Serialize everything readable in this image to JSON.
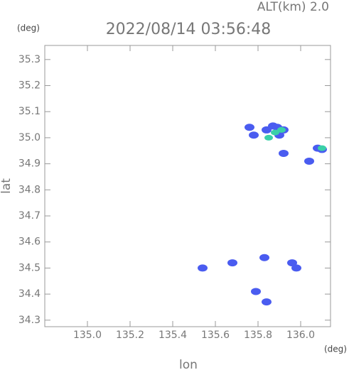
{
  "chart_data": {
    "type": "scatter",
    "title": "2022/08/14 03:56:48",
    "subtitle": "ALT(km) 2.0",
    "y_unit": "(deg)",
    "x_unit": "(deg)",
    "x_label": "lon",
    "y_label": "lat",
    "xlim": [
      134.8,
      136.14
    ],
    "ylim": [
      34.275,
      35.354
    ],
    "xticks": [
      {
        "value": 135,
        "label": "135.0"
      },
      135.2,
      135.4,
      135.6,
      135.8,
      {
        "value": 136,
        "label": "136.0"
      }
    ],
    "yticks": [
      34.3,
      34.4,
      34.5,
      34.6,
      34.7,
      34.8,
      34.9,
      {
        "value": 35,
        "label": "35.0"
      },
      35.1,
      35.2,
      35.3
    ],
    "series": [
      {
        "color": "#4a5cf0",
        "x": [
          135.84,
          135.87,
          135.89,
          135.92,
          135.9,
          135.76,
          135.78,
          135.92,
          136.08,
          136.1,
          136.04,
          135.96,
          135.98,
          135.68,
          135.54,
          135.83,
          135.79,
          135.84
        ],
        "y": [
          35.03,
          35.045,
          35.04,
          35.03,
          35.01,
          35.04,
          35.01,
          34.94,
          34.96,
          34.955,
          34.91,
          34.52,
          34.5,
          34.52,
          34.5,
          34.54,
          34.41,
          34.37
        ]
      },
      {
        "color": "#3ad0a8",
        "x": [
          135.88,
          135.91,
          135.85,
          136.1
        ],
        "y": [
          35.02,
          35.03,
          35.0,
          34.96
        ]
      }
    ]
  }
}
